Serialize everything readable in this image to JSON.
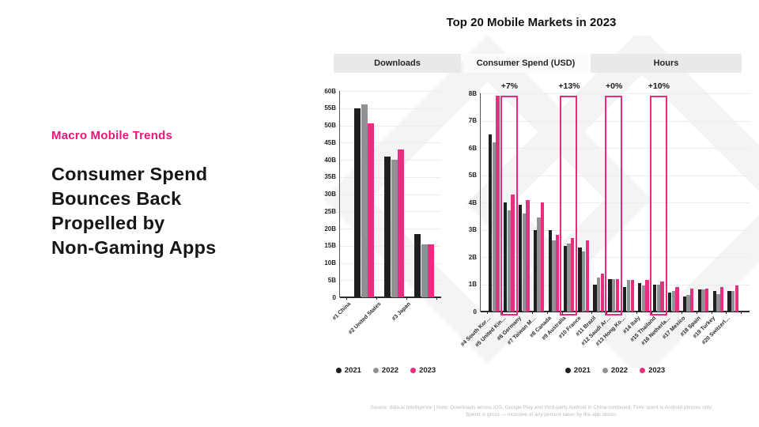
{
  "slide": {
    "eyebrow": "Macro Mobile Trends",
    "headline_lines": [
      "Consumer Spend",
      "Bounces Back",
      "Propelled by",
      "Non-Gaming Apps"
    ],
    "chart_title": "Top 20 Mobile Markets in 2023",
    "footer_line1": "Source: data.ai Intelligence | Note: Downloads across iOS, Google Play and third-party Android in China combined; Time spent is Android phones only;",
    "footer_line2": "Spend is gross — inclusive of any percent taken by the app stores."
  },
  "colors": {
    "accent_pink_text": "#f01379",
    "bar_2021": "#1f1f21",
    "bar_2022": "#919195",
    "bar_2023": "#ea2e7f",
    "highlight_box": "#ec2a7d"
  },
  "tabs": [
    {
      "label": "Downloads",
      "selected": false
    },
    {
      "label": "Consumer Spend (USD)",
      "selected": true
    },
    {
      "label": "Hours",
      "selected": false
    }
  ],
  "legend_years": [
    "2021",
    "2022",
    "2023"
  ],
  "chart_data": [
    {
      "type": "bar",
      "title": "Downloads",
      "unit": "billions of downloads",
      "categories": [
        "#1 China",
        "#2 United States",
        "#3 Japan"
      ],
      "series": [
        {
          "name": "2021",
          "values": [
            55,
            41,
            18.5
          ]
        },
        {
          "name": "2022",
          "values": [
            56,
            40,
            15.5
          ]
        },
        {
          "name": "2023",
          "values": [
            50.5,
            43,
            15.5
          ]
        }
      ],
      "ylim": [
        0,
        60
      ],
      "ytick_step": 5,
      "ytick_labels": [
        "0",
        "5B",
        "10B",
        "15B",
        "20B",
        "25B",
        "30B",
        "35B",
        "40B",
        "45B",
        "50B",
        "55B",
        "60B"
      ],
      "grid": true,
      "legend_position": "bottom"
    },
    {
      "type": "bar",
      "title": "Consumer Spend (USD)",
      "unit": "billions of USD",
      "categories": [
        "#4 South Kor…",
        "#5 United Kin…",
        "#6 Germany",
        "#7 Taiwan M…",
        "#8 Canada",
        "#9 Australia",
        "#10 France",
        "#11 Brazil",
        "#12 Saudi Ar…",
        "#13 Hong Ko…",
        "#14 Italy",
        "#15 Thailand",
        "#16 Netherla…",
        "#17 Mexico",
        "#18 Spain",
        "#19 Turkey",
        "#20 Switzerl…"
      ],
      "series": [
        {
          "name": "2021",
          "values": [
            6.5,
            4.0,
            3.9,
            3.0,
            3.0,
            2.4,
            2.35,
            1.0,
            1.2,
            0.9,
            1.05,
            1.0,
            0.7,
            0.55,
            0.8,
            0.75,
            0.75
          ]
        },
        {
          "name": "2022",
          "values": [
            6.2,
            3.7,
            3.6,
            3.45,
            2.6,
            2.5,
            2.2,
            1.25,
            1.2,
            1.15,
            0.95,
            1.0,
            0.75,
            0.6,
            0.8,
            0.65,
            0.75
          ]
        },
        {
          "name": "2023",
          "values": [
            7.9,
            4.3,
            4.1,
            4.0,
            2.8,
            2.7,
            2.6,
            1.4,
            1.2,
            1.15,
            1.15,
            1.1,
            0.9,
            0.85,
            0.85,
            0.9,
            0.95
          ]
        }
      ],
      "highlights": [
        {
          "category_index": 1,
          "category": "#5 United Kin…",
          "growth_label": "+7%"
        },
        {
          "category_index": 5,
          "category": "#9 Australia",
          "growth_label": "+13%"
        },
        {
          "category_index": 8,
          "category": "#12 Saudi Ar…",
          "growth_label": "+0%"
        },
        {
          "category_index": 11,
          "category": "#15 Thailand",
          "growth_label": "+10%"
        }
      ],
      "ylim": [
        0,
        8
      ],
      "ytick_step": 1,
      "ytick_labels": [
        "0",
        "1B",
        "2B",
        "3B",
        "4B",
        "5B",
        "6B",
        "7B",
        "8B"
      ],
      "grid": true,
      "legend_position": "bottom"
    }
  ]
}
